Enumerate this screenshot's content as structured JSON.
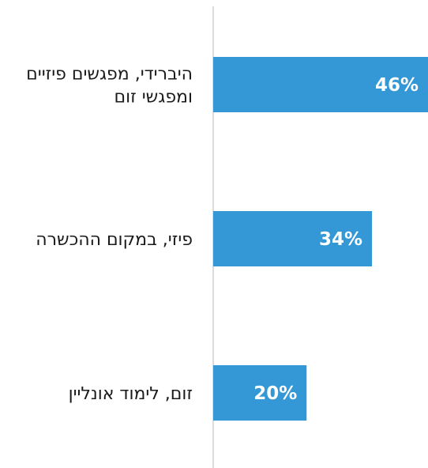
{
  "chart_data": {
    "type": "bar",
    "orientation": "horizontal",
    "categories": [
      [
        "היברידי, מפגשים פיזיים",
        "ומפגשי זום"
      ],
      [
        "פיזי, במקום ההכשרה"
      ],
      [
        "זום, לימוד אונליין"
      ]
    ],
    "values": [
      46,
      34,
      20
    ],
    "value_labels": [
      "46%",
      "34%",
      "20%"
    ],
    "unit": "%",
    "xlim": [
      0,
      46
    ],
    "bar_color": "#3498d6",
    "axis_color": "#d0d0d0",
    "grid": false,
    "legend": "none"
  }
}
